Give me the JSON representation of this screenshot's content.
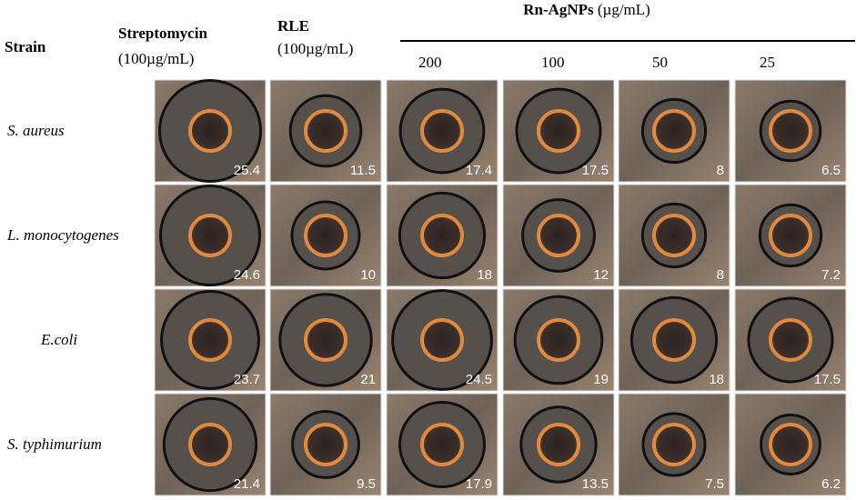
{
  "header": {
    "strain": "Strain",
    "columns": [
      {
        "name": "Streptomycin",
        "unit": "(100µg/mL)"
      },
      {
        "name": "RLE",
        "unit": "(100µg/mL)"
      }
    ],
    "group": {
      "name": "Rn-AgNPs",
      "unit": "(µg/mL)",
      "concentrations": [
        200,
        100,
        50,
        25
      ]
    }
  },
  "rows": [
    {
      "strain": "S. aureus",
      "zones": [
        25.4,
        11.5,
        17.4,
        17.5,
        8,
        6.5
      ]
    },
    {
      "strain": "L. monocytogenes",
      "zones": [
        24.6,
        10,
        18,
        12,
        8,
        7.2
      ]
    },
    {
      "strain": "E.coli",
      "zones": [
        23.7,
        21,
        24.5,
        19,
        18,
        17.5
      ]
    },
    {
      "strain": "S. typhimurium",
      "zones": [
        21.4,
        9.5,
        17.9,
        13.5,
        7.5,
        6.2
      ]
    }
  ]
}
